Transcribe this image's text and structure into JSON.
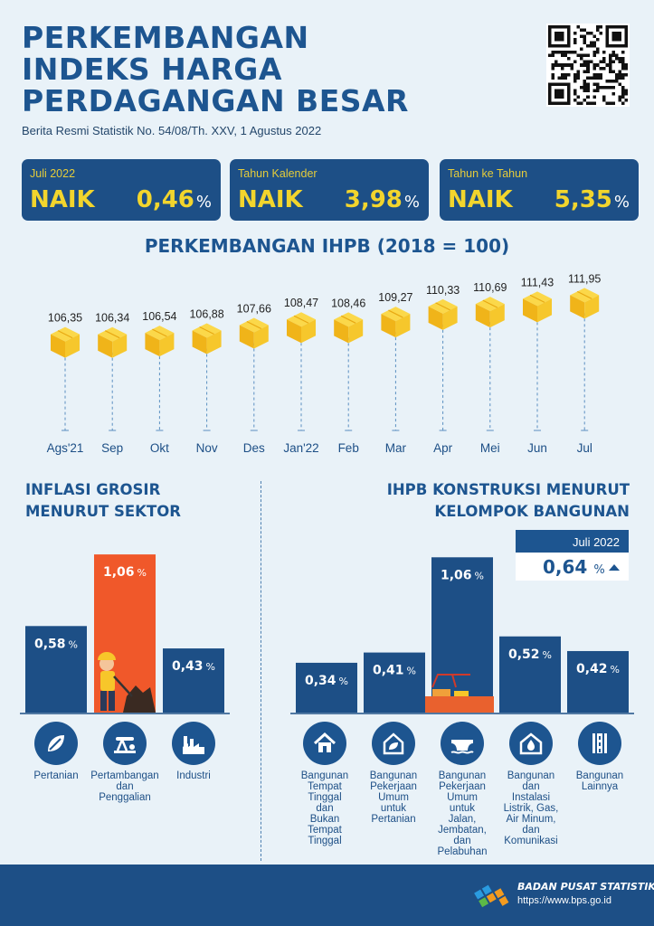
{
  "header": {
    "title_lines": [
      "PERKEMBANGAN",
      "INDEKS HARGA",
      "PERDAGANGAN BESAR"
    ],
    "subtitle": "Berita Resmi Statistik No. 54/08/Th. XXV, 1 Agustus 2022"
  },
  "stats": [
    {
      "label": "Juli 2022",
      "direction": "NAIK",
      "value": "0,46",
      "unit": "%"
    },
    {
      "label": "Tahun Kalender",
      "direction": "NAIK",
      "value": "3,98",
      "unit": "%"
    },
    {
      "label": "Tahun ke Tahun",
      "direction": "NAIK",
      "value": "5,35",
      "unit": "%"
    }
  ],
  "colors": {
    "navy": "#1d4f86",
    "yellow": "#f2d52d",
    "orange": "#f0582a",
    "bg": "#e9f2f8",
    "cube": "#f7c62a"
  },
  "chart_data": [
    {
      "type": "line",
      "title": "PERKEMBANGAN IHPB (2018 = 100)",
      "categories": [
        "Ags'21",
        "Sep",
        "Okt",
        "Nov",
        "Des",
        "Jan'22",
        "Feb",
        "Mar",
        "Apr",
        "Mei",
        "Jun",
        "Jul"
      ],
      "values": [
        106.35,
        106.34,
        106.54,
        106.88,
        107.66,
        108.47,
        108.46,
        109.27,
        110.33,
        110.69,
        111.43,
        111.95
      ],
      "labels": [
        "106,35",
        "106,34",
        "106,54",
        "106,88",
        "107,66",
        "108,47",
        "108,46",
        "109,27",
        "110,33",
        "110,69",
        "111,43",
        "111,95"
      ]
    },
    {
      "type": "bar",
      "title": "INFLASI GROSIR MENURUT SEKTOR",
      "categories": [
        "Pertanian",
        "Pertambangan dan Penggalian",
        "Industri"
      ],
      "values": [
        0.58,
        1.06,
        0.43
      ],
      "labels": [
        "0,58",
        "1,06",
        "0,43"
      ],
      "unit": "%"
    },
    {
      "type": "bar",
      "title": "IHPB KONSTRUKSI MENURUT KELOMPOK BANGUNAN",
      "categories": [
        "Bangunan Tempat Tinggal dan Bukan Tempat Tinggal",
        "Bangunan Pekerjaan Umum untuk Pertanian",
        "Bangunan Pekerjaan Umum untuk Jalan, Jembatan, dan Pelabuhan",
        "Bangunan dan Instalasi Listrik, Gas, Air Minum, dan Komunikasi",
        "Bangunan Lainnya"
      ],
      "values": [
        0.34,
        0.41,
        1.06,
        0.52,
        0.42
      ],
      "labels": [
        "0,34",
        "0,41",
        "1,06",
        "0,52",
        "0,42"
      ],
      "unit": "%"
    }
  ],
  "sector": {
    "title_lines": [
      "INFLASI GROSIR",
      "MENURUT SEKTOR"
    ],
    "captions": [
      [
        "Pertanian"
      ],
      [
        "Pertambangan",
        "dan",
        "Penggalian"
      ],
      [
        "Industri"
      ]
    ],
    "icons": [
      "leaf-icon",
      "oil-pump-icon",
      "factory-icon"
    ]
  },
  "konstruksi": {
    "title_lines": [
      "IHPB KONSTRUKSI MENURUT",
      "KELOMPOK BANGUNAN"
    ],
    "juli_label": "Juli 2022",
    "juli_value": "0,64",
    "juli_unit": "%",
    "captions": [
      [
        "Bangunan",
        "Tempat",
        "Tinggal",
        "dan",
        "Bukan",
        "Tempat",
        "Tinggal"
      ],
      [
        "Bangunan",
        "Pekerjaan",
        "Umum",
        "untuk",
        "Pertanian"
      ],
      [
        "Bangunan",
        "Pekerjaan",
        "Umum",
        "untuk",
        "Jalan,",
        "Jembatan,",
        "dan",
        "Pelabuhan"
      ],
      [
        "Bangunan",
        "dan",
        "Instalasi",
        "Listrik, Gas,",
        "Air Minum,",
        "dan",
        "Komunikasi"
      ],
      [
        "Bangunan",
        "Lainnya"
      ]
    ],
    "icons": [
      "house-icon",
      "farm-building-icon",
      "bridge-icon",
      "water-drop-house-icon",
      "road-icon"
    ]
  },
  "footer": {
    "org": "BADAN PUSAT STATISTIK",
    "url": "https://www.bps.go.id"
  }
}
